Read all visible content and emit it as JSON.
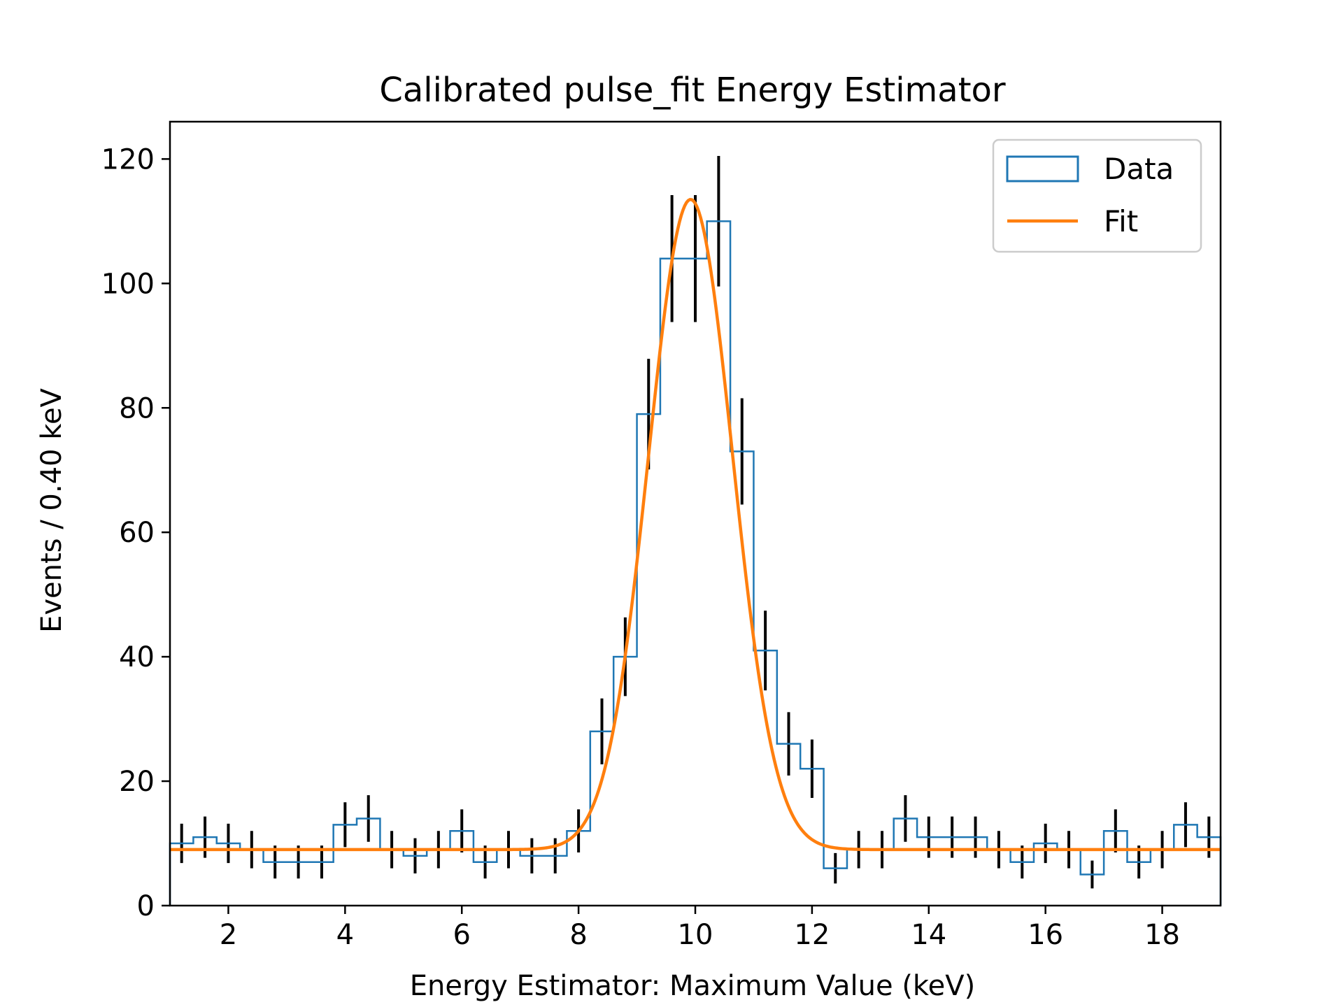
{
  "chart_data": {
    "type": "histogram",
    "title": "Calibrated pulse_fit Energy Estimator",
    "xlabel": "Energy Estimator: Maximum Value (keV)",
    "ylabel": "Events / 0.40 keV",
    "xlim": [
      1.0,
      19.0
    ],
    "ylim": [
      0,
      126
    ],
    "xticks": [
      2,
      4,
      6,
      8,
      10,
      12,
      14,
      16,
      18
    ],
    "yticks": [
      0,
      20,
      40,
      60,
      80,
      100,
      120
    ],
    "bin_width": 0.4,
    "bin_edges": [
      1.0,
      1.4,
      1.8,
      2.2,
      2.6,
      3.0,
      3.4,
      3.8,
      4.2,
      4.6,
      5.0,
      5.4,
      5.8,
      6.2,
      6.6,
      7.0,
      7.4,
      7.8,
      8.2,
      8.6,
      9.0,
      9.4,
      9.8,
      10.2,
      10.6,
      11.0,
      11.4,
      11.8,
      12.2,
      12.6,
      13.0,
      13.4,
      13.8,
      14.2,
      14.6,
      15.0,
      15.4,
      15.8,
      16.2,
      16.6,
      17.0,
      17.4,
      17.8,
      18.2,
      18.6,
      19.0
    ],
    "series": [
      {
        "name": "Data",
        "kind": "step-histogram",
        "color": "#1f77b4",
        "counts": [
          10,
          11,
          10,
          9,
          7,
          7,
          7,
          13,
          14,
          9,
          8,
          9,
          12,
          7,
          9,
          8,
          8,
          12,
          28,
          40,
          79,
          104,
          104,
          110,
          73,
          41,
          26,
          22,
          6,
          9,
          9,
          14,
          11,
          11,
          11,
          9,
          7,
          10,
          9,
          5,
          12,
          7,
          9,
          13,
          11
        ],
        "error_bar_color": "#000000"
      },
      {
        "name": "Fit",
        "kind": "gaussian-plus-constant",
        "color": "#ff7f0e",
        "baseline": 9.0,
        "amplitude": 104.5,
        "mean": 9.92,
        "sigma": 0.72
      }
    ],
    "legend": {
      "position": "top-right",
      "entries": [
        "Data",
        "Fit"
      ]
    },
    "grid": false
  }
}
